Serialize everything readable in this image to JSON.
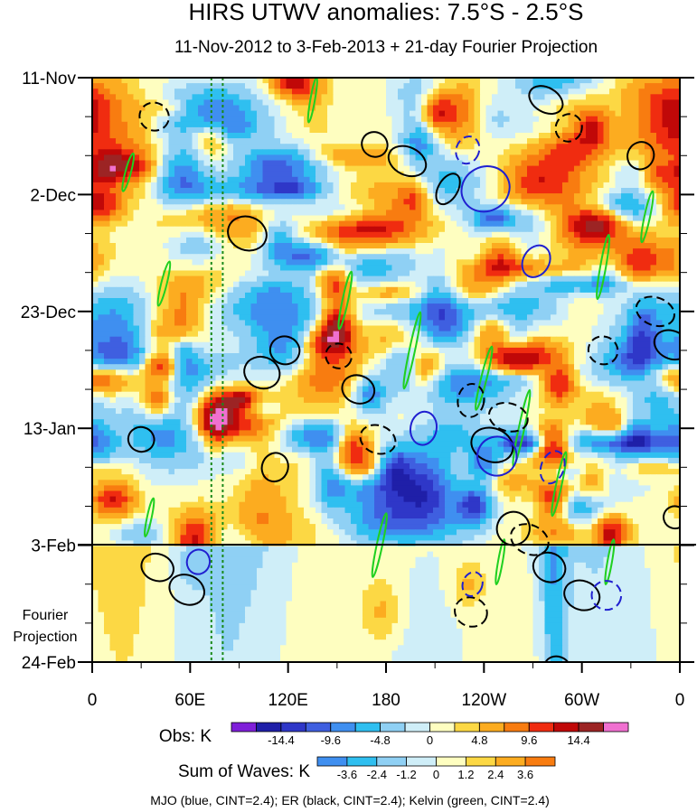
{
  "chart_data": {
    "type": "heatmap",
    "title": "HIRS UTWV anomalies: 7.5°S - 2.5°S",
    "subtitle": "11-Nov-2012 to 3-Feb-2013 + 21-day Fourier Projection",
    "x_tick_labels": [
      "0",
      "60E",
      "120E",
      "180",
      "120W",
      "60W",
      "0"
    ],
    "x_tick_values_deg_east": [
      0,
      60,
      120,
      180,
      240,
      300,
      360
    ],
    "y_tick_labels": [
      "11-Nov",
      "2-Dec",
      "23-Dec",
      "13-Jan",
      "3-Feb",
      "24-Feb"
    ],
    "y_tick_day_offsets": [
      0,
      21,
      42,
      63,
      84,
      105
    ],
    "observation_end_label": "3-Feb",
    "projection_label": [
      "Fourier",
      "Projection"
    ],
    "projection_days": 21,
    "reference_lines_deg_east": [
      73,
      80
    ],
    "obs_colorbar": {
      "label": "Obs: K",
      "tick_labels": [
        "-14.4",
        "-9.6",
        "-4.8",
        "0",
        "4.8",
        "9.6",
        "14.4"
      ],
      "colors": [
        "#7f1fd9",
        "#1f1fa8",
        "#2f37c8",
        "#3f5fe0",
        "#3f8ff0",
        "#2fbff0",
        "#8fd0f4",
        "#cfeef8",
        "#fefec0",
        "#fcd844",
        "#fcac20",
        "#f87c10",
        "#f02c10",
        "#c00808",
        "#9c2424",
        "#f070d0"
      ]
    },
    "wave_colorbar": {
      "label": "Sum of Waves: K",
      "tick_labels": [
        "-3.6",
        "-2.4",
        "-1.2",
        "0",
        "1.2",
        "2.4",
        "3.6"
      ],
      "colors": [
        "#3f8ff0",
        "#2fbff0",
        "#8fd0f4",
        "#cfeef8",
        "#fefec0",
        "#fcd844",
        "#fcac20",
        "#f87c10"
      ]
    },
    "contour_legend": "MJO (blue, CINT=2.4); ER (black, CINT=2.4); Kelvin (green, CINT=2.4)",
    "series_colors": {
      "mjo": "#2020d0",
      "er": "#000000",
      "kelvin": "#20d020"
    }
  }
}
